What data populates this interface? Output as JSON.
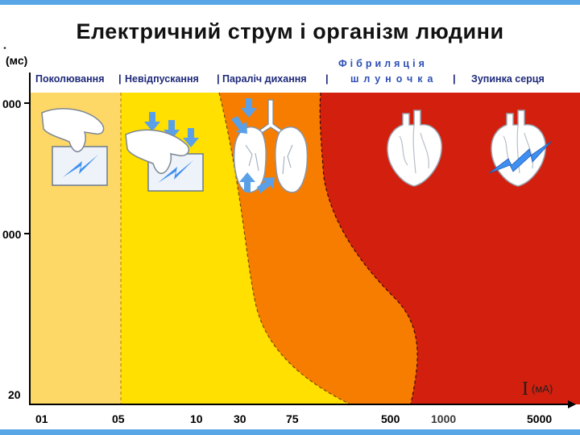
{
  "title": "Електричний  струм  і  організм  людини",
  "y_unit": "(мс)",
  "x_unit_symbol": "I",
  "x_unit": "(мА)",
  "zones": {
    "tingling": "Поколювання",
    "no_release": "Невідпускання",
    "resp_paralysis": "Параліч дихання",
    "fibrillation_line1": "Фібриляція",
    "fibrillation_line2": "шлуночка",
    "cardiac_arrest": "Зупинка  серця"
  },
  "x_ticks": [
    "01",
    "05",
    "10",
    "30",
    "75",
    "500",
    "1000",
    "5000"
  ],
  "y_ticks": [
    "000",
    "000",
    "20"
  ],
  "colors": {
    "zone1": "#fed867",
    "zone2": "#ffe000",
    "zone3": "#f77d00",
    "zone4": "#d21f0e",
    "label_text": "#1f2a7a",
    "fibrillation_text": "#2d4fb5",
    "bar": "#59a6e6"
  },
  "icons": [
    "hand-tingling-icon",
    "hand-arrows-icon",
    "lungs-icon",
    "heart-icon",
    "heart-arrest-icon"
  ]
}
